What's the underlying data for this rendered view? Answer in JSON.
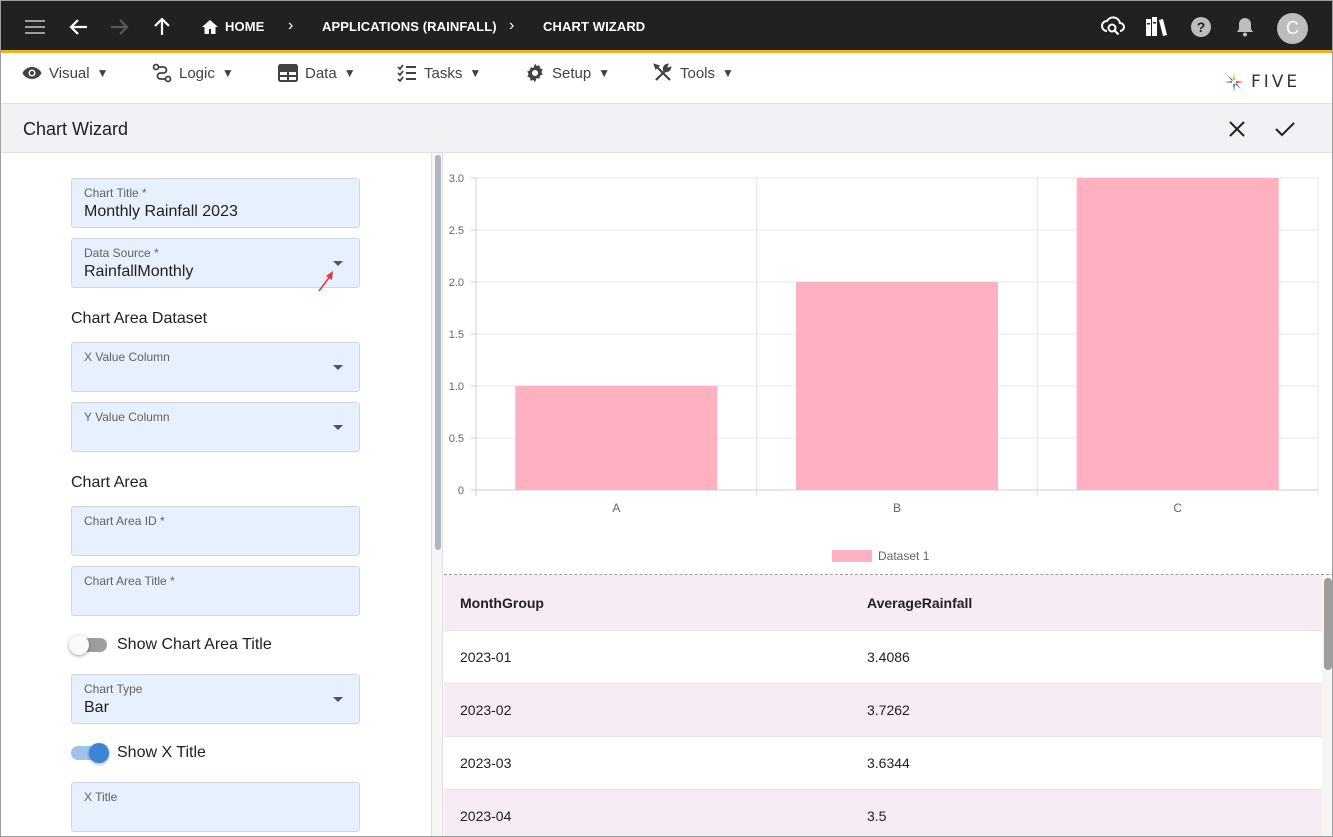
{
  "topbar": {
    "breadcrumbs": [
      "HOME",
      "APPLICATIONS (RAINFALL)",
      "CHART WIZARD"
    ],
    "avatar_initial": "C",
    "accent_color": "#f2b01e"
  },
  "menubar": {
    "items": [
      {
        "label": "Visual",
        "icon": "eye-icon"
      },
      {
        "label": "Logic",
        "icon": "logic-icon"
      },
      {
        "label": "Data",
        "icon": "table-icon"
      },
      {
        "label": "Tasks",
        "icon": "checklist-icon"
      },
      {
        "label": "Setup",
        "icon": "gear-icon"
      },
      {
        "label": "Tools",
        "icon": "tools-icon"
      }
    ],
    "caret": "▼",
    "brand": "FIVE"
  },
  "page": {
    "title": "Chart Wizard"
  },
  "form": {
    "chart_title": {
      "label": "Chart Title *",
      "value": "Monthly Rainfall 2023"
    },
    "data_source": {
      "label": "Data Source *",
      "value": "RainfallMonthly"
    },
    "section_dataset": "Chart Area Dataset",
    "x_value_column": {
      "label": "X Value Column",
      "value": ""
    },
    "y_value_column": {
      "label": "Y Value Column",
      "value": ""
    },
    "section_area": "Chart Area",
    "chart_area_id": {
      "label": "Chart Area ID *",
      "value": ""
    },
    "chart_area_title": {
      "label": "Chart Area Title *",
      "value": ""
    },
    "show_chart_area_title": {
      "label": "Show Chart Area Title",
      "on": false
    },
    "chart_type": {
      "label": "Chart Type",
      "value": "Bar"
    },
    "show_x_title": {
      "label": "Show X Title",
      "on": true
    },
    "x_title": {
      "label": "X Title",
      "value": ""
    }
  },
  "chart_data": {
    "type": "bar",
    "categories": [
      "A",
      "B",
      "C"
    ],
    "series": [
      {
        "name": "Dataset 1",
        "values": [
          1,
          2,
          3
        ],
        "color": "#ffb0c1"
      }
    ],
    "ylim": [
      0,
      3
    ],
    "y_ticks": [
      "0",
      "0.5",
      "1.0",
      "1.5",
      "2.0",
      "2.5",
      "3.0"
    ],
    "grid": true,
    "legend": "bottom"
  },
  "table": {
    "columns": [
      "MonthGroup",
      "AverageRainfall"
    ],
    "rows": [
      [
        "2023-01",
        "3.4086"
      ],
      [
        "2023-02",
        "3.7262"
      ],
      [
        "2023-03",
        "3.6344"
      ],
      [
        "2023-04",
        "3.5"
      ]
    ]
  }
}
